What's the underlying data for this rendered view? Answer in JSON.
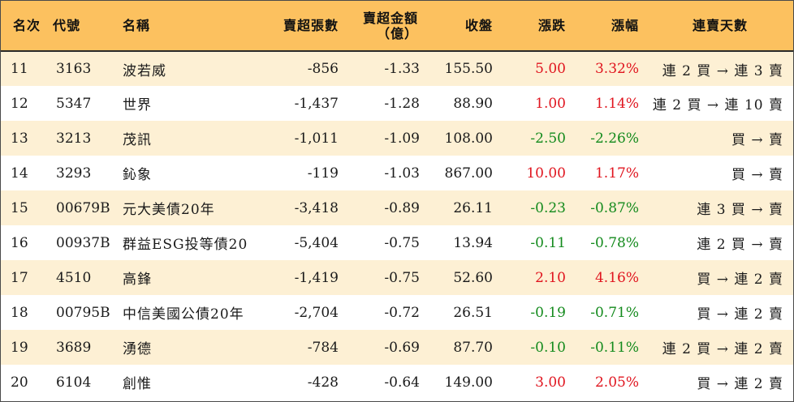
{
  "colors": {
    "header_bg": "#fcc15f",
    "row_alt_bg": "#fdf0d4",
    "up": "#e0141e",
    "down": "#138a1c"
  },
  "headers": {
    "rank": "名次",
    "code": "代號",
    "name": "名稱",
    "sell_shares": "賣超張數",
    "sell_amount_line1": "賣超金額",
    "sell_amount_line2": "（億）",
    "close": "收盤",
    "change": "漲跌",
    "pct": "漲幅",
    "days": "連賣天數"
  },
  "rows": [
    {
      "rank": "11",
      "code": "3163",
      "name": "波若威",
      "sell_shares": "-856",
      "sell_amount": "-1.33",
      "close": "155.50",
      "change": "5.00",
      "pct": "3.32%",
      "days": "連 2 買 → 連 3 賣",
      "trend": "up"
    },
    {
      "rank": "12",
      "code": "5347",
      "name": "世界",
      "sell_shares": "-1,437",
      "sell_amount": "-1.28",
      "close": "88.90",
      "change": "1.00",
      "pct": "1.14%",
      "days": "連 2 買 → 連 10 賣",
      "trend": "up"
    },
    {
      "rank": "13",
      "code": "3213",
      "name": "茂訊",
      "sell_shares": "-1,011",
      "sell_amount": "-1.09",
      "close": "108.00",
      "change": "-2.50",
      "pct": "-2.26%",
      "days": "買 → 賣",
      "trend": "down"
    },
    {
      "rank": "14",
      "code": "3293",
      "name": "鈊象",
      "sell_shares": "-119",
      "sell_amount": "-1.03",
      "close": "867.00",
      "change": "10.00",
      "pct": "1.17%",
      "days": "買 → 賣",
      "trend": "up"
    },
    {
      "rank": "15",
      "code": "00679B",
      "name": "元大美債20年",
      "sell_shares": "-3,418",
      "sell_amount": "-0.89",
      "close": "26.11",
      "change": "-0.23",
      "pct": "-0.87%",
      "days": "連 3 買 → 賣",
      "trend": "down"
    },
    {
      "rank": "16",
      "code": "00937B",
      "name": "群益ESG投等債20",
      "sell_shares": "-5,404",
      "sell_amount": "-0.75",
      "close": "13.94",
      "change": "-0.11",
      "pct": "-0.78%",
      "days": "連 2 買 → 賣",
      "trend": "down"
    },
    {
      "rank": "17",
      "code": "4510",
      "name": "高鋒",
      "sell_shares": "-1,419",
      "sell_amount": "-0.75",
      "close": "52.60",
      "change": "2.10",
      "pct": "4.16%",
      "days": "買 → 連 2 賣",
      "trend": "up"
    },
    {
      "rank": "18",
      "code": "00795B",
      "name": "中信美國公債20年",
      "sell_shares": "-2,704",
      "sell_amount": "-0.72",
      "close": "26.51",
      "change": "-0.19",
      "pct": "-0.71%",
      "days": "買 → 連 2 賣",
      "trend": "down"
    },
    {
      "rank": "19",
      "code": "3689",
      "name": "湧德",
      "sell_shares": "-784",
      "sell_amount": "-0.69",
      "close": "87.70",
      "change": "-0.10",
      "pct": "-0.11%",
      "days": "連 2 買 → 連 2 賣",
      "trend": "down"
    },
    {
      "rank": "20",
      "code": "6104",
      "name": "創惟",
      "sell_shares": "-428",
      "sell_amount": "-0.64",
      "close": "149.00",
      "change": "3.00",
      "pct": "2.05%",
      "days": "買 → 連 2 賣",
      "trend": "up"
    }
  ]
}
